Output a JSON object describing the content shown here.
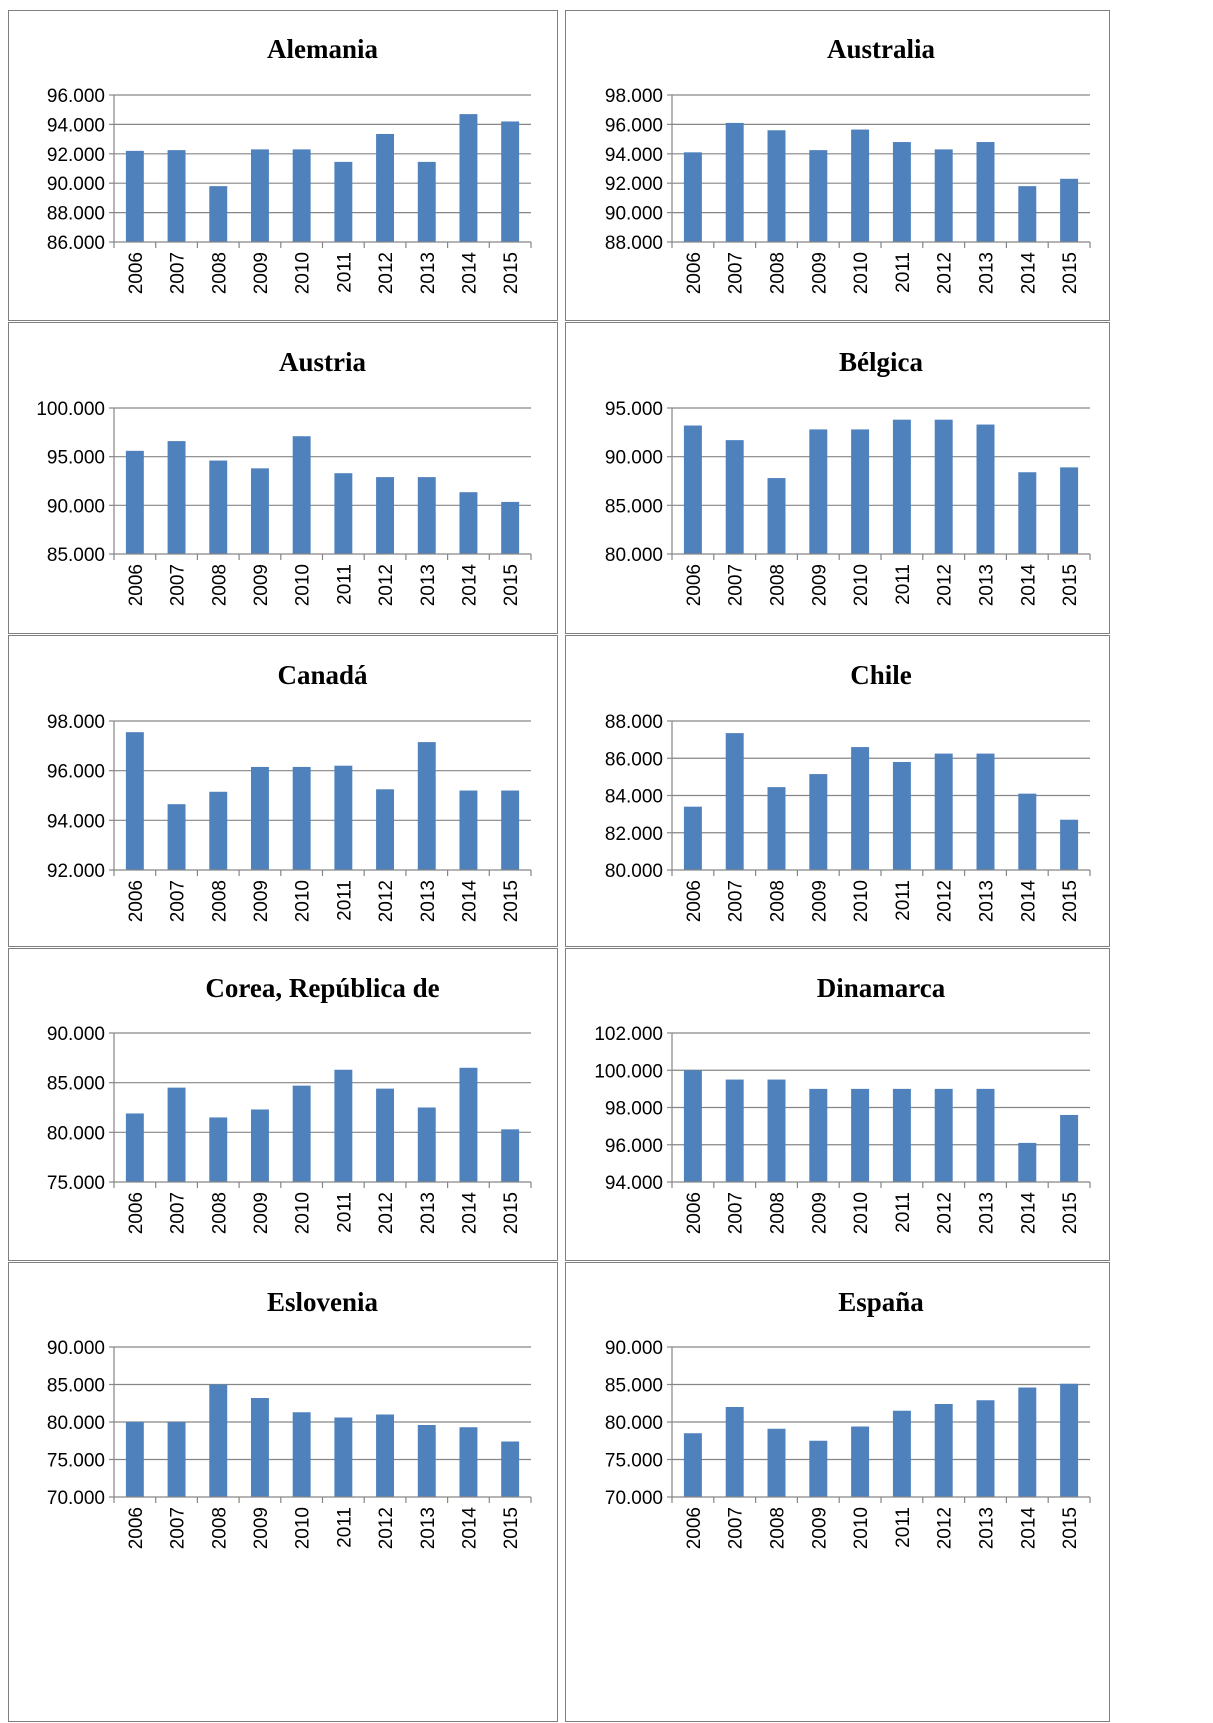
{
  "chart_data": [
    {
      "type": "bar",
      "title": "Alemania",
      "categories": [
        "2006",
        "2007",
        "2008",
        "2009",
        "2010",
        "2011",
        "2012",
        "2013",
        "2014",
        "2015"
      ],
      "values": [
        92.2,
        92.25,
        89.8,
        92.3,
        92.3,
        91.45,
        93.35,
        91.45,
        94.7,
        94.2
      ],
      "yticks": [
        "86.000",
        "88.000",
        "90.000",
        "92.000",
        "94.000",
        "96.000"
      ],
      "ylim": [
        86,
        96
      ],
      "grid": true
    },
    {
      "type": "bar",
      "title": "Australia",
      "categories": [
        "2006",
        "2007",
        "2008",
        "2009",
        "2010",
        "2011",
        "2012",
        "2013",
        "2014",
        "2015"
      ],
      "values": [
        94.1,
        96.1,
        95.6,
        94.25,
        95.65,
        94.8,
        94.3,
        94.8,
        91.8,
        92.3
      ],
      "yticks": [
        "88.000",
        "90.000",
        "92.000",
        "94.000",
        "96.000",
        "98.000"
      ],
      "ylim": [
        88,
        98
      ],
      "grid": true
    },
    {
      "type": "bar",
      "title": "Austria",
      "categories": [
        "2006",
        "2007",
        "2008",
        "2009",
        "2010",
        "2011",
        "2012",
        "2013",
        "2014",
        "2015"
      ],
      "values": [
        95.6,
        96.6,
        94.6,
        93.8,
        97.1,
        93.3,
        92.9,
        92.9,
        91.35,
        90.35
      ],
      "yticks": [
        "85.000",
        "90.000",
        "95.000",
        "100.000"
      ],
      "ylim": [
        85,
        100
      ],
      "grid": true
    },
    {
      "type": "bar",
      "title": "Bélgica",
      "categories": [
        "2006",
        "2007",
        "2008",
        "2009",
        "2010",
        "2011",
        "2012",
        "2013",
        "2014",
        "2015"
      ],
      "values": [
        93.2,
        91.7,
        87.8,
        92.8,
        92.8,
        93.8,
        93.8,
        93.3,
        88.4,
        88.9
      ],
      "yticks": [
        "80.000",
        "85.000",
        "90.000",
        "95.000"
      ],
      "ylim": [
        80,
        95
      ],
      "grid": true
    },
    {
      "type": "bar",
      "title": "Canadá",
      "categories": [
        "2006",
        "2007",
        "2008",
        "2009",
        "2010",
        "2011",
        "2012",
        "2013",
        "2014",
        "2015"
      ],
      "values": [
        97.55,
        94.65,
        95.15,
        96.15,
        96.15,
        96.2,
        95.25,
        97.15,
        95.2,
        95.2
      ],
      "yticks": [
        "92.000",
        "94.000",
        "96.000",
        "98.000"
      ],
      "ylim": [
        92,
        98
      ],
      "grid": true
    },
    {
      "type": "bar",
      "title": "Chile",
      "categories": [
        "2006",
        "2007",
        "2008",
        "2009",
        "2010",
        "2011",
        "2012",
        "2013",
        "2014",
        "2015"
      ],
      "values": [
        83.4,
        87.35,
        84.45,
        85.15,
        86.6,
        85.8,
        86.25,
        86.25,
        84.1,
        82.7
      ],
      "yticks": [
        "80.000",
        "82.000",
        "84.000",
        "86.000",
        "88.000"
      ],
      "ylim": [
        80,
        88
      ],
      "grid": true
    },
    {
      "type": "bar",
      "title": "Corea, República de",
      "categories": [
        "2006",
        "2007",
        "2008",
        "2009",
        "2010",
        "2011",
        "2012",
        "2013",
        "2014",
        "2015"
      ],
      "values": [
        81.9,
        84.5,
        81.5,
        82.3,
        84.7,
        86.3,
        84.4,
        82.5,
        86.5,
        80.3
      ],
      "yticks": [
        "75.000",
        "80.000",
        "85.000",
        "90.000"
      ],
      "ylim": [
        75,
        90
      ],
      "grid": true
    },
    {
      "type": "bar",
      "title": "Dinamarca",
      "categories": [
        "2006",
        "2007",
        "2008",
        "2009",
        "2010",
        "2011",
        "2012",
        "2013",
        "2014",
        "2015"
      ],
      "values": [
        100,
        99.5,
        99.5,
        99,
        99,
        99,
        99,
        99,
        96.1,
        97.6
      ],
      "yticks": [
        "94.000",
        "96.000",
        "98.000",
        "100.000",
        "102.000"
      ],
      "ylim": [
        94,
        102
      ],
      "grid": true
    },
    {
      "type": "bar",
      "title": "Eslovenia",
      "categories": [
        "2006",
        "2007",
        "2008",
        "2009",
        "2010",
        "2011",
        "2012",
        "2013",
        "2014",
        "2015"
      ],
      "values": [
        80,
        80,
        85,
        83.2,
        81.3,
        80.6,
        81,
        79.6,
        79.3,
        77.4
      ],
      "yticks": [
        "70.000",
        "75.000",
        "80.000",
        "85.000",
        "90.000"
      ],
      "ylim": [
        70,
        90
      ],
      "grid": true
    },
    {
      "type": "bar",
      "title": "España",
      "categories": [
        "2006",
        "2007",
        "2008",
        "2009",
        "2010",
        "2011",
        "2012",
        "2013",
        "2014",
        "2015"
      ],
      "values": [
        78.5,
        82,
        79.1,
        77.5,
        79.4,
        81.5,
        82.4,
        82.9,
        84.6,
        85.1
      ],
      "yticks": [
        "70.000",
        "75.000",
        "80.000",
        "85.000",
        "90.000"
      ],
      "ylim": [
        70,
        90
      ],
      "grid": true
    }
  ]
}
